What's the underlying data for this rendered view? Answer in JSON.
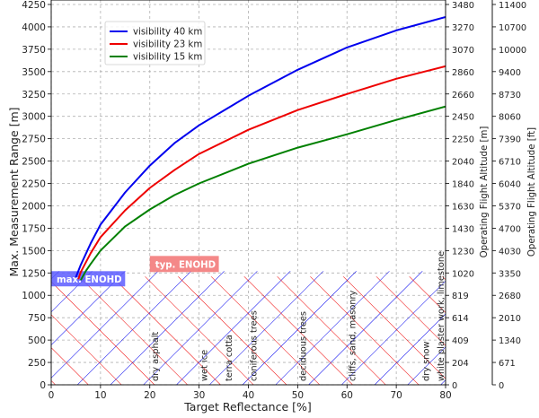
{
  "chart_data": {
    "type": "line",
    "title": "",
    "xlabel": "Target Reflectance [%]",
    "ylabel": "Max. Measurement Range [m]",
    "xlim": [
      0,
      80
    ],
    "ylim": [
      0,
      4300
    ],
    "x_ticks": [
      "0",
      "10",
      "20",
      "30",
      "40",
      "50",
      "60",
      "70",
      "80"
    ],
    "y_ticks": [
      "0",
      "250",
      "500",
      "750",
      "1000",
      "1250",
      "1500",
      "1750",
      "2000",
      "2250",
      "2500",
      "2750",
      "3000",
      "3250",
      "3500",
      "3750",
      "4000",
      "4250"
    ],
    "grid": true,
    "legend_position": "upper-left",
    "colors": {
      "blue": "#0000ee",
      "red": "#ee0000",
      "green": "#008000",
      "band_blue": "#5c5cff",
      "band_red": "#f27373"
    },
    "series": [
      {
        "name": "visibility 40 km",
        "color": "#0000ee",
        "x": [
          5,
          6,
          8,
          10,
          15,
          20,
          25,
          30,
          40,
          50,
          60,
          70,
          80
        ],
        "values": [
          1200,
          1340,
          1580,
          1790,
          2150,
          2450,
          2700,
          2900,
          3230,
          3520,
          3770,
          3960,
          4110
        ]
      },
      {
        "name": "visibility 23 km",
        "color": "#ee0000",
        "x": [
          5.5,
          6,
          8,
          10,
          15,
          20,
          25,
          30,
          40,
          50,
          60,
          70,
          80
        ],
        "values": [
          1180,
          1260,
          1470,
          1650,
          1950,
          2200,
          2400,
          2580,
          2850,
          3070,
          3250,
          3420,
          3560
        ]
      },
      {
        "name": "visibility 15 km",
        "color": "#008000",
        "x": [
          6,
          7,
          8,
          10,
          15,
          20,
          25,
          30,
          40,
          50,
          60,
          70,
          80
        ],
        "values": [
          1170,
          1270,
          1350,
          1500,
          1770,
          1960,
          2120,
          2250,
          2470,
          2650,
          2800,
          2960,
          3110
        ]
      }
    ],
    "bands": [
      {
        "label": "max. ENOHD",
        "color": "#5c5cff",
        "x": [
          0,
          15
        ],
        "y": [
          1100,
          1270
        ]
      },
      {
        "label": "typ. ENOHD",
        "color": "#f27373",
        "x": [
          20,
          34
        ],
        "y": [
          1260,
          1440
        ]
      }
    ],
    "regions": [
      {
        "label": "dry asphalt",
        "x": [
          20,
          20
        ]
      },
      {
        "label": "wet ice",
        "x": [
          30,
          30
        ]
      },
      {
        "label": "terra cotta",
        "x": [
          35,
          35
        ]
      },
      {
        "label": "coniferous trees",
        "x": [
          40,
          40
        ]
      },
      {
        "label": "deciduous trees",
        "x": [
          50,
          50
        ]
      },
      {
        "label": "cliffs, sand, masonry",
        "x": [
          60,
          60
        ]
      },
      {
        "label": "dry snow",
        "x": [
          75,
          75
        ]
      },
      {
        "label": "white plaster work, limestone",
        "x": [
          78,
          78
        ]
      }
    ],
    "right_axis_1": {
      "title": "Operating Flight Altitude [m]",
      "ticks": [
        "0",
        "204",
        "409",
        "614",
        "819",
        "1020",
        "1230",
        "1430",
        "1630",
        "1840",
        "2040",
        "2250",
        "2450",
        "2660",
        "2860",
        "3070",
        "3270",
        "3480"
      ]
    },
    "right_axis_2": {
      "title": "Operating Flight Altitude [ft]",
      "ticks": [
        "0",
        "671",
        "1340",
        "2010",
        "2680",
        "3350",
        "4030",
        "4700",
        "5370",
        "6040",
        "6710",
        "7390",
        "8060",
        "8730",
        "9400",
        "10000",
        "10700",
        "11400"
      ]
    }
  }
}
